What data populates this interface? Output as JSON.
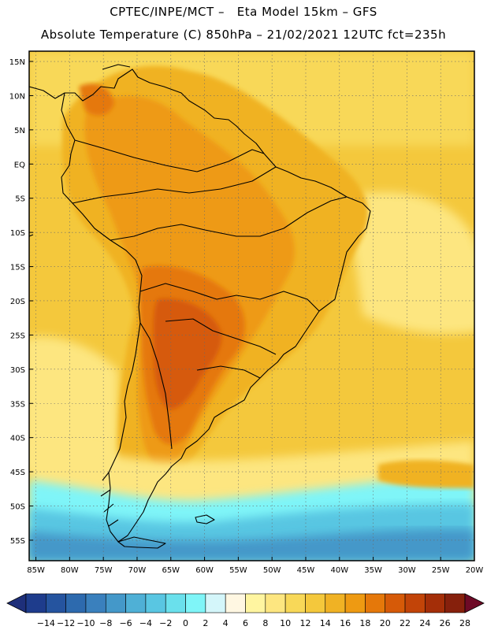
{
  "header": {
    "line1": "CPTEC/INPE/MCT –   Eta Model 15km – GFS",
    "line2": "Absolute Temperature (C) 850hPa – 21/02/2021 12UTC fct=235h"
  },
  "axes": {
    "lat_labels": [
      "15N",
      "10N",
      "5N",
      "EQ",
      "5S",
      "10S",
      "15S",
      "20S",
      "25S",
      "30S",
      "35S",
      "40S",
      "45S",
      "50S",
      "55S"
    ],
    "lon_labels": [
      "85W",
      "80W",
      "75W",
      "70W",
      "65W",
      "60W",
      "55W",
      "50W",
      "45W",
      "40W",
      "35W",
      "30W",
      "25W",
      "20W"
    ]
  },
  "colorbar": {
    "labels": [
      "-14",
      "-12",
      "-10",
      "-8",
      "-6",
      "-4",
      "-2",
      "0",
      "2",
      "4",
      "6",
      "8",
      "10",
      "12",
      "14",
      "16",
      "18",
      "20",
      "22",
      "24",
      "26",
      "28"
    ],
    "colors": [
      "#1e3c8c",
      "#25549f",
      "#2d6aae",
      "#3a80bd",
      "#4498c9",
      "#4fb0d6",
      "#59c6e2",
      "#6ae0ec",
      "#7ff5f8",
      "#d4f6fa",
      "#fff7e2",
      "#fff5a0",
      "#fde680",
      "#f8d858",
      "#f4c83c",
      "#f0b224",
      "#ee9a12",
      "#e5780a",
      "#d65a08",
      "#c24408",
      "#a42e08",
      "#86200c"
    ],
    "low_arrow_color": "#1e2f7a",
    "high_arrow_color": "#6e0a26"
  },
  "colors": {
    "ocean_tropical": "#f8d858",
    "ocean_mid": "#f4c83c",
    "land_warm": "#f0b224",
    "land_hot": "#ee9a12",
    "land_hottest": "#e5780a",
    "land_core": "#d65a08",
    "band_cool": "#fde680",
    "band_cold": "#7ff5f8",
    "band_colder": "#59c6e2",
    "band_coldest": "#4498c9",
    "coast": "#000000",
    "grid": "#6a6a6a"
  }
}
